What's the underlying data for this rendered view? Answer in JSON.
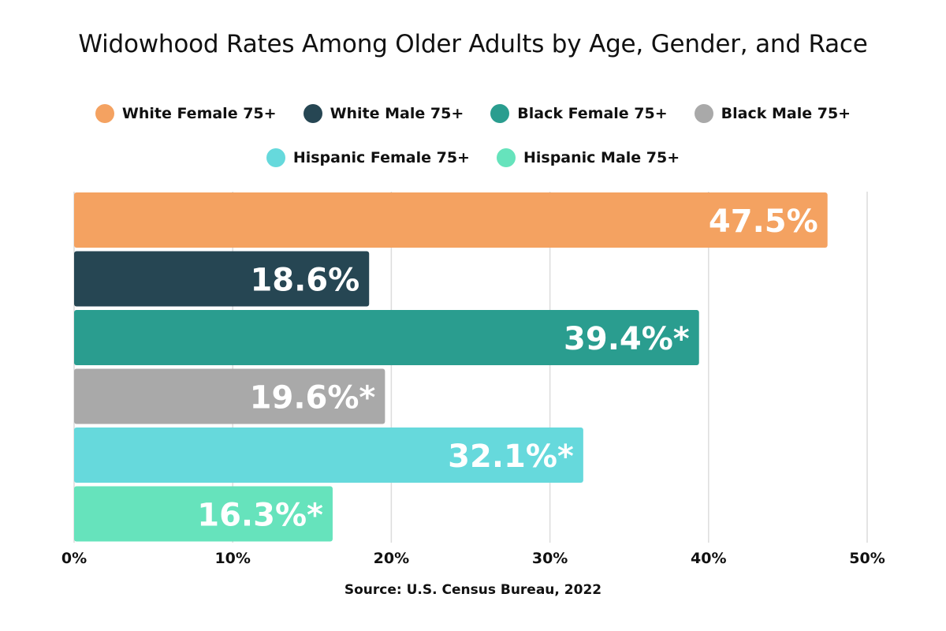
{
  "chart_data": {
    "type": "bar",
    "orientation": "horizontal",
    "title": "Widowhood Rates Among Older Adults by Age, Gender, and Race",
    "source": "Source: U.S. Census Bureau, 2022",
    "xlim": [
      0,
      50
    ],
    "x_ticks": [
      0,
      10,
      20,
      30,
      40,
      50
    ],
    "x_tick_labels": [
      "0%",
      "10%",
      "20%",
      "30%",
      "40%",
      "50%"
    ],
    "grid": "vertical",
    "legend_position": "top",
    "bars": [
      {
        "name": "White Female 75+",
        "value": 47.5,
        "label": "47.5%",
        "color": "#F4A261"
      },
      {
        "name": "White Male 75+",
        "value": 18.6,
        "label": "18.6%",
        "color": "#264653"
      },
      {
        "name": "Black Female 75+",
        "value": 39.4,
        "label": "39.4%*",
        "color": "#2A9D8F"
      },
      {
        "name": "Black Male 75+",
        "value": 19.6,
        "label": "19.6%*",
        "color": "#A9A9A9"
      },
      {
        "name": "Hispanic Female 75+",
        "value": 32.1,
        "label": "32.1%*",
        "color": "#66D9DC"
      },
      {
        "name": "Hispanic Male 75+",
        "value": 16.3,
        "label": "16.3%*",
        "color": "#66E3BC"
      }
    ]
  }
}
